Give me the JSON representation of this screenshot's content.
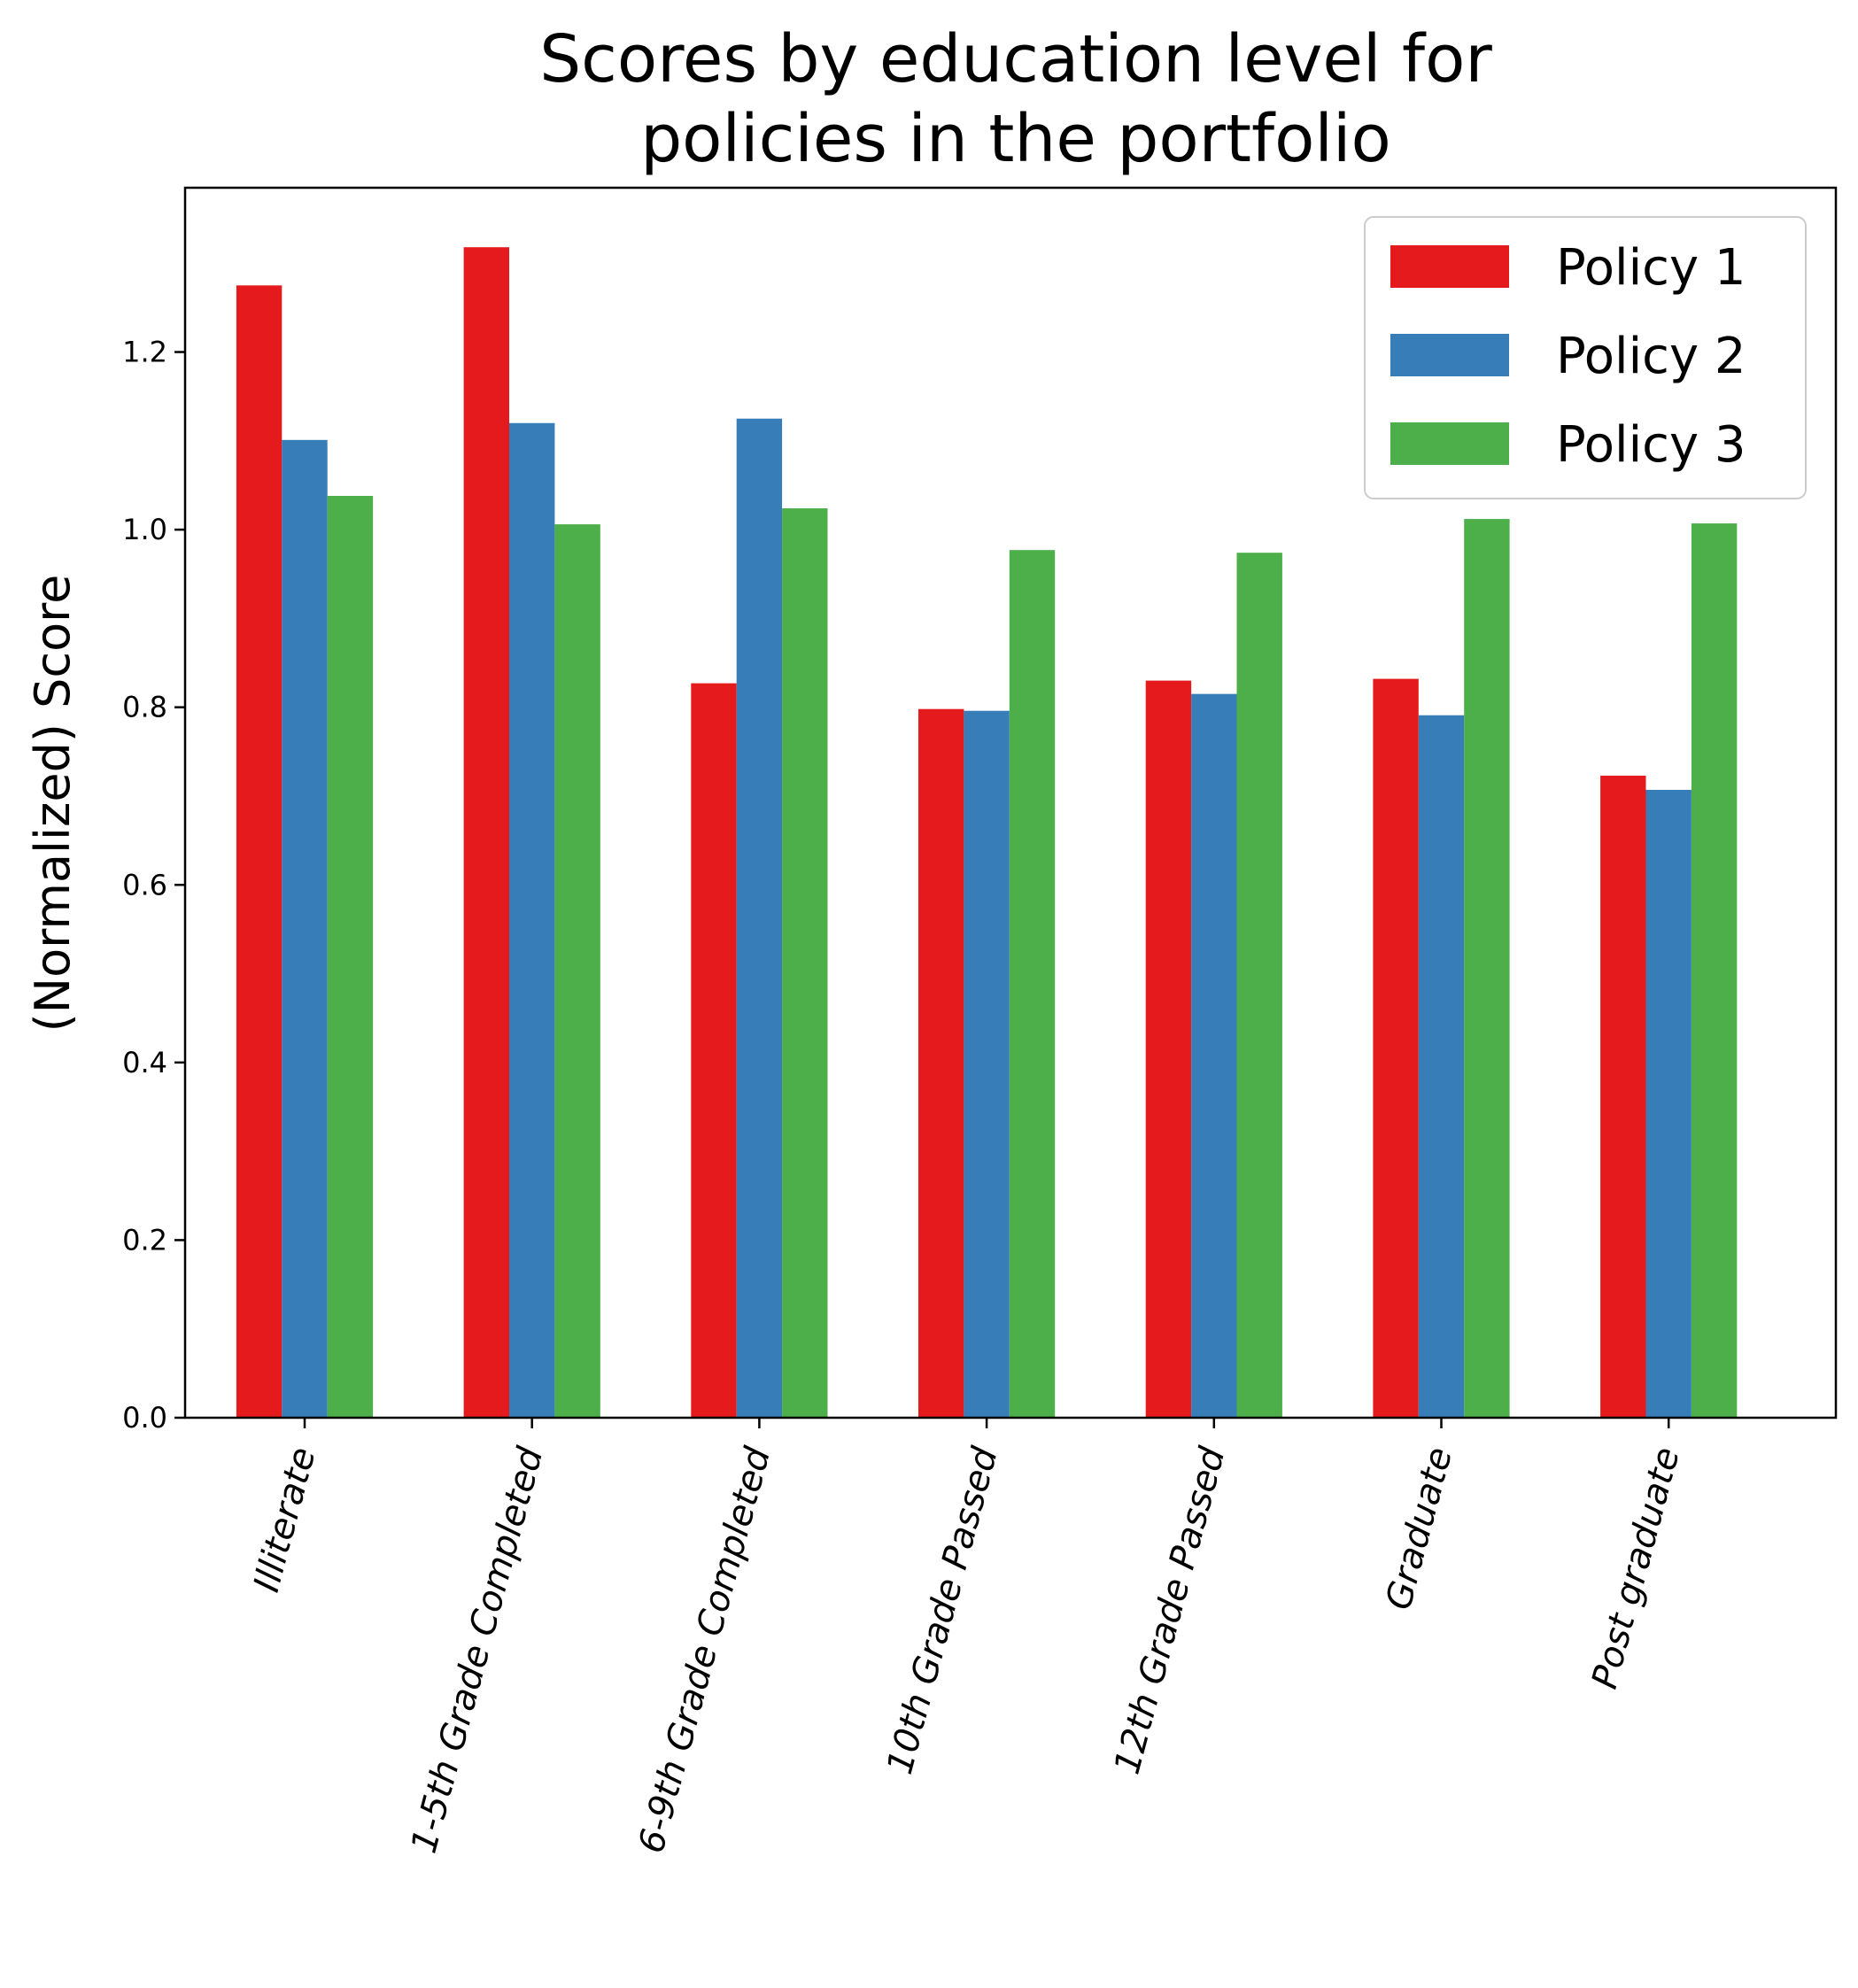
{
  "chart_data": {
    "type": "bar",
    "title_lines": [
      "Scores by education level for",
      "policies in the portfolio"
    ],
    "ylabel": "(Normalized) Score",
    "xlabel": "",
    "ylim": [
      0,
      1.385
    ],
    "yticks": [
      0.0,
      0.2,
      0.4,
      0.6,
      0.8,
      1.0,
      1.2
    ],
    "ytick_labels": [
      "0.0",
      "0.2",
      "0.4",
      "0.6",
      "0.8",
      "1.0",
      "1.2"
    ],
    "categories": [
      "Illiterate",
      "1-5th Grade Completed",
      "6-9th Grade Completed",
      "10th Grade Passed",
      "12th Grade Passed",
      "Graduate",
      "Post graduate"
    ],
    "series": [
      {
        "name": "Policy 1",
        "color": "#e41a1c",
        "values": [
          1.275,
          1.318,
          0.827,
          0.798,
          0.83,
          0.832,
          0.723
        ]
      },
      {
        "name": "Policy 2",
        "color": "#377eb8",
        "values": [
          1.101,
          1.12,
          1.125,
          0.796,
          0.815,
          0.791,
          0.707
        ]
      },
      {
        "name": "Policy 3",
        "color": "#4daf4a",
        "values": [
          1.038,
          1.006,
          1.024,
          0.977,
          0.974,
          1.012,
          1.007
        ]
      }
    ],
    "grid": false,
    "legend_position": "top-right"
  }
}
